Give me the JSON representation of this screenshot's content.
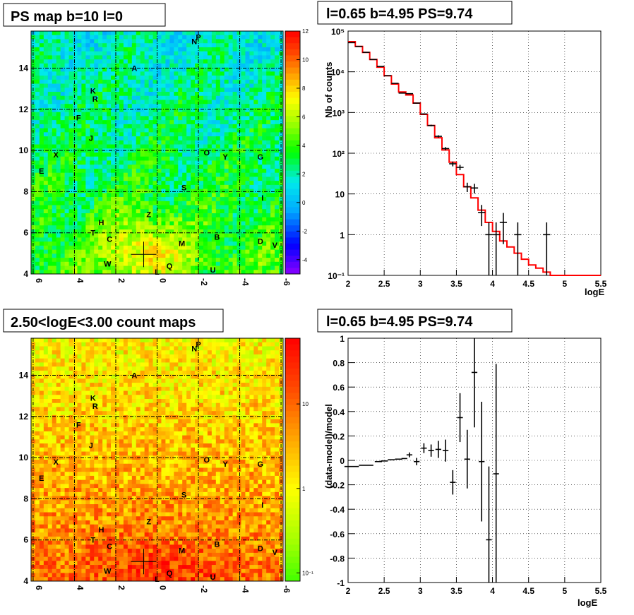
{
  "chart_data": [
    {
      "type": "heatmap",
      "title": "PS map b=10 l=0",
      "xtick_labels": [
        "6",
        "4",
        "2",
        "0",
        "-2",
        "-4",
        "-6"
      ],
      "ytick_labels": [
        "4",
        "6",
        "8",
        "10",
        "12",
        "14"
      ],
      "x_range": [
        6.1,
        -6.1
      ],
      "y_range": [
        4,
        15.8
      ],
      "colorbar_labels": [
        "12",
        "10",
        "8",
        "6",
        "4",
        "2",
        "0",
        "-2",
        "-4"
      ],
      "colorbar_range": [
        -5,
        12
      ],
      "marker": {
        "l": 0.65,
        "b": 4.95
      },
      "sources": [
        {
          "n": "A",
          "x": 1.1,
          "y": 14.0
        },
        {
          "n": "K",
          "x": 3.1,
          "y": 12.9
        },
        {
          "n": "R",
          "x": 3.0,
          "y": 12.5
        },
        {
          "n": "F",
          "x": 3.8,
          "y": 11.6
        },
        {
          "n": "J",
          "x": 3.2,
          "y": 10.6
        },
        {
          "n": "X",
          "x": 4.9,
          "y": 9.8
        },
        {
          "n": "E",
          "x": 5.6,
          "y": 9.0
        },
        {
          "n": "N",
          "x": -1.8,
          "y": 15.3
        },
        {
          "n": "P",
          "x": -2.0,
          "y": 15.5
        },
        {
          "n": "O",
          "x": -2.4,
          "y": 9.9
        },
        {
          "n": "Y",
          "x": -3.3,
          "y": 9.7
        },
        {
          "n": "G",
          "x": -5.0,
          "y": 9.7
        },
        {
          "n": "S",
          "x": -1.3,
          "y": 8.2
        },
        {
          "n": "I",
          "x": -5.1,
          "y": 7.7
        },
        {
          "n": "Z",
          "x": 0.4,
          "y": 6.9
        },
        {
          "n": "H",
          "x": 2.7,
          "y": 6.5
        },
        {
          "n": "T",
          "x": 3.1,
          "y": 6.0
        },
        {
          "n": "C",
          "x": 2.3,
          "y": 5.7
        },
        {
          "n": "M",
          "x": -1.2,
          "y": 5.5
        },
        {
          "n": "B",
          "x": -2.9,
          "y": 5.8
        },
        {
          "n": "D",
          "x": -5.0,
          "y": 5.6
        },
        {
          "n": "V",
          "x": -5.7,
          "y": 5.4
        },
        {
          "n": "W",
          "x": 2.4,
          "y": 4.5
        },
        {
          "n": "Q",
          "x": -0.6,
          "y": 4.4
        },
        {
          "n": "U",
          "x": -2.7,
          "y": 4.2
        },
        {
          "n": "L",
          "x": 0.0,
          "y": 4.1
        }
      ]
    },
    {
      "type": "line",
      "title": "l=0.65 b=4.95 PS=9.74",
      "xlabel": "logE",
      "ylabel": "Nb of counts",
      "y_scale": "log",
      "xlim": [
        2,
        5.5
      ],
      "ylim": [
        0.1,
        100000
      ],
      "xtick_labels": [
        "2",
        "2.5",
        "3",
        "3.5",
        "4",
        "4.5",
        "5",
        "5.5"
      ],
      "ytick_labels": [
        "10⁻¹",
        "1",
        "10",
        "10²",
        "10³",
        "10⁴",
        "10⁵"
      ],
      "series": [
        {
          "style": "data-points",
          "color": "#000000",
          "x": [
            2.05,
            2.15,
            2.25,
            2.35,
            2.45,
            2.55,
            2.65,
            2.75,
            2.85,
            2.95,
            3.05,
            3.15,
            3.25,
            3.35,
            3.45,
            3.55,
            3.65,
            3.75,
            3.85,
            3.95,
            4.05,
            4.15,
            4.35,
            4.75
          ],
          "y": [
            52000,
            42000,
            30000,
            20000,
            13500,
            8000,
            5200,
            3000,
            2900,
            1700,
            920,
            480,
            260,
            130,
            55,
            45,
            15,
            14,
            3.5,
            1,
            1,
            2,
            1,
            1
          ]
        },
        {
          "style": "model-step",
          "color": "#ff0000",
          "x": [
            2.05,
            2.15,
            2.25,
            2.35,
            2.45,
            2.55,
            2.65,
            2.75,
            2.85,
            2.95,
            3.05,
            3.15,
            3.25,
            3.35,
            3.45,
            3.55,
            3.65,
            3.75,
            3.85,
            3.95,
            4.05,
            4.15,
            4.25,
            4.35,
            4.45,
            4.55,
            4.65,
            4.75,
            4.85,
            4.95,
            5.05,
            5.15,
            5.25,
            5.35,
            5.45
          ],
          "y": [
            55000,
            42000,
            30000,
            20000,
            13000,
            8000,
            5000,
            3200,
            2700,
            1700,
            900,
            480,
            240,
            120,
            60,
            30,
            15,
            8,
            4,
            2,
            1.2,
            0.7,
            0.5,
            0.35,
            0.25,
            0.18,
            0.15,
            0.12,
            0.1,
            0.1,
            0.1,
            0.1,
            0.1,
            0.1,
            0.1
          ]
        }
      ]
    },
    {
      "type": "heatmap",
      "title": "2.50<logE<3.00 count maps",
      "xtick_labels": [
        "6",
        "4",
        "2",
        "0",
        "-2",
        "-4",
        "-6"
      ],
      "ytick_labels": [
        "4",
        "6",
        "8",
        "10",
        "12",
        "14"
      ],
      "x_range": [
        6.1,
        -6.1
      ],
      "y_range": [
        4,
        15.8
      ],
      "colorbar_labels": [
        "10",
        "1",
        "10⁻¹"
      ],
      "colorbar_scale": "log",
      "colorbar_range": [
        0.08,
        60
      ],
      "marker": {
        "l": 0.65,
        "b": 4.95
      }
    },
    {
      "type": "scatter",
      "title": "l=0.65 b=4.95 PS=9.74",
      "xlabel": "logE",
      "ylabel": "(data-model)/model",
      "xlim": [
        2,
        5.5
      ],
      "ylim": [
        -1,
        1
      ],
      "xtick_labels": [
        "2",
        "2.5",
        "3",
        "3.5",
        "4",
        "4.5",
        "5",
        "5.5"
      ],
      "ytick_labels": [
        "1",
        "0.8",
        "0.6",
        "0.4",
        "0.2",
        "0",
        "-0.2",
        "-0.4",
        "-0.6",
        "-0.8",
        "-1"
      ],
      "points": [
        {
          "x": 2.05,
          "y": -0.05,
          "ex": 0.1,
          "ey": 0.0
        },
        {
          "x": 2.25,
          "y": -0.04,
          "ex": 0.1,
          "ey": 0.0
        },
        {
          "x": 2.42,
          "y": -0.01,
          "ex": 0.05,
          "ey": 0.0
        },
        {
          "x": 2.5,
          "y": -0.005,
          "ex": 0.05,
          "ey": 0.0
        },
        {
          "x": 2.6,
          "y": 0.005,
          "ex": 0.05,
          "ey": 0.0
        },
        {
          "x": 2.7,
          "y": 0.01,
          "ex": 0.05,
          "ey": 0.0
        },
        {
          "x": 2.78,
          "y": 0.015,
          "ex": 0.04,
          "ey": 0.0
        },
        {
          "x": 2.85,
          "y": 0.045,
          "ex": 0.04,
          "ey": 0.02
        },
        {
          "x": 2.95,
          "y": -0.01,
          "ex": 0.04,
          "ey": 0.03
        },
        {
          "x": 3.05,
          "y": 0.1,
          "ex": 0.04,
          "ey": 0.04
        },
        {
          "x": 3.15,
          "y": 0.08,
          "ex": 0.04,
          "ey": 0.05
        },
        {
          "x": 3.25,
          "y": 0.09,
          "ex": 0.04,
          "ey": 0.07
        },
        {
          "x": 3.35,
          "y": 0.08,
          "ex": 0.04,
          "ey": 0.09
        },
        {
          "x": 3.45,
          "y": -0.18,
          "ex": 0.04,
          "ey": 0.1
        },
        {
          "x": 3.55,
          "y": 0.35,
          "ex": 0.04,
          "ey": 0.2
        },
        {
          "x": 3.65,
          "y": 0.01,
          "ex": 0.04,
          "ey": 0.24
        },
        {
          "x": 3.75,
          "y": 0.72,
          "ex": 0.04,
          "ey": 0.45
        },
        {
          "x": 3.85,
          "y": -0.01,
          "ex": 0.04,
          "ey": 0.49
        },
        {
          "x": 3.95,
          "y": -0.65,
          "ex": 0.04,
          "ey": 0.6
        },
        {
          "x": 4.05,
          "y": -0.11,
          "ex": 0.04,
          "ey": 0.9
        }
      ]
    }
  ]
}
